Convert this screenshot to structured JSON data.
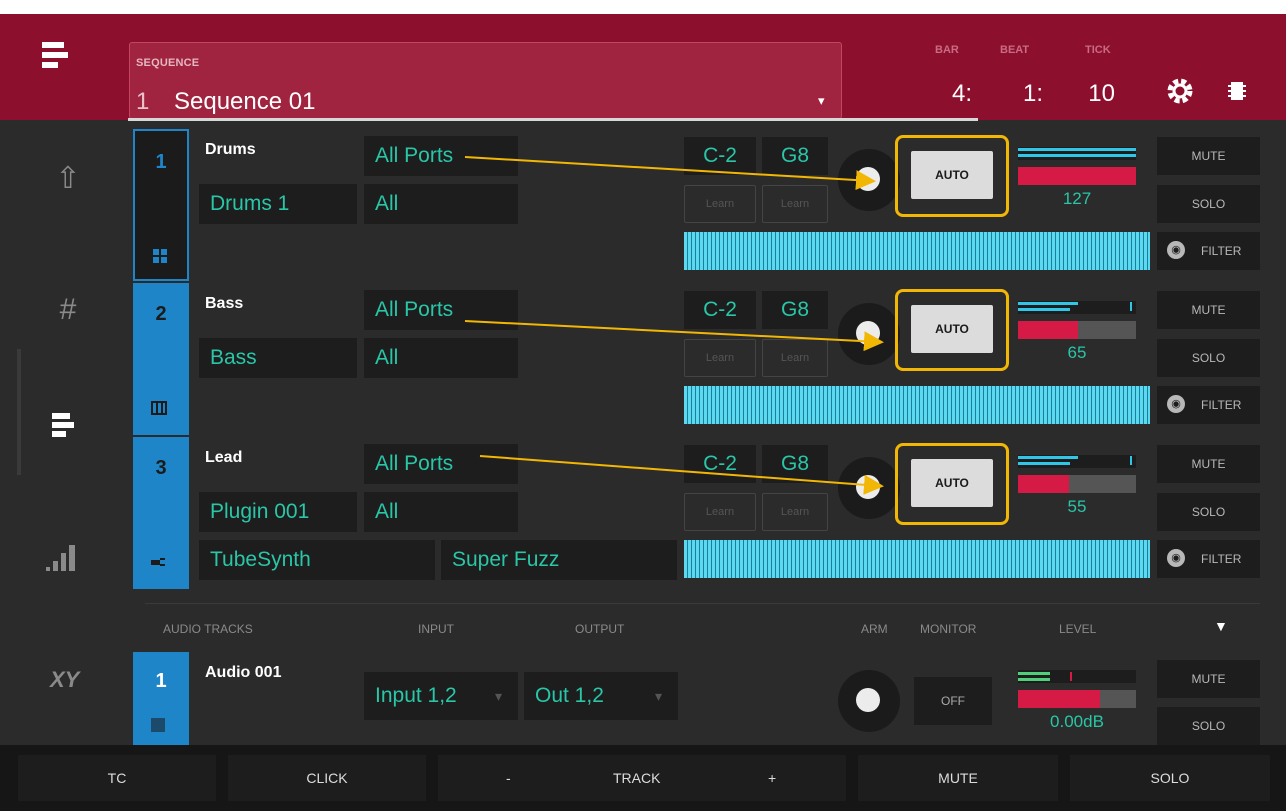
{
  "header": {
    "sequence_label": "SEQUENCE",
    "sequence_number": "1",
    "sequence_name": "Sequence 01",
    "bar_label": "BAR",
    "beat_label": "BEAT",
    "tick_label": "TICK",
    "bar_value": "4:",
    "beat_value": "1:",
    "tick_value": "10"
  },
  "sidebar": {
    "items": [
      {
        "name": "home-icon",
        "glyph": "⇧"
      },
      {
        "name": "grid-icon",
        "glyph": "#"
      },
      {
        "name": "track-view-icon",
        "glyph": "≡"
      },
      {
        "name": "mixer-icon",
        "glyph": "▁▃▅▇"
      },
      {
        "name": "xy-icon",
        "glyph": "XY"
      }
    ]
  },
  "midi_tracks": [
    {
      "number": "1",
      "name": "Drums",
      "port": "All Ports",
      "program": "Drums 1",
      "channel": "All",
      "low": "C-2",
      "high": "G8",
      "learn": "Learn",
      "auto": "AUTO",
      "level": "127",
      "level_fraction": 1.0,
      "mute": "MUTE",
      "solo": "SOLO",
      "filter": "FILTER",
      "icon": "pads-icon",
      "plugin": null,
      "preset": null,
      "color": "#1b1b1c"
    },
    {
      "number": "2",
      "name": "Bass",
      "port": "All Ports",
      "program": "Bass",
      "channel": "All",
      "low": "C-2",
      "high": "G8",
      "learn": "Learn",
      "auto": "AUTO",
      "level": "65",
      "level_fraction": 0.51,
      "mute": "MUTE",
      "solo": "SOLO",
      "filter": "FILTER",
      "icon": "keys-icon",
      "plugin": null,
      "preset": null,
      "color": "#1e86c8"
    },
    {
      "number": "3",
      "name": "Lead",
      "port": "All Ports",
      "program": "Plugin 001",
      "channel": "All",
      "low": "C-2",
      "high": "G8",
      "learn": "Learn",
      "auto": "AUTO",
      "level": "55",
      "level_fraction": 0.43,
      "mute": "MUTE",
      "solo": "SOLO",
      "filter": "FILTER",
      "icon": "plugin-icon",
      "plugin": "TubeSynth",
      "preset": "Super Fuzz",
      "color": "#1e86c8"
    }
  ],
  "audio_section": {
    "headers": {
      "tracks": "AUDIO TRACKS",
      "input": "INPUT",
      "output": "OUTPUT",
      "arm": "ARM",
      "monitor": "MONITOR",
      "level": "LEVEL"
    },
    "track": {
      "number": "1",
      "name": "Audio 001",
      "input": "Input 1,2",
      "output": "Out 1,2",
      "monitor": "OFF",
      "level": "0.00dB",
      "mute": "MUTE",
      "solo": "SOLO"
    }
  },
  "bottom_bar": {
    "tc": "TC",
    "click": "CLICK",
    "minus": "-",
    "track": "TRACK",
    "plus": "+",
    "mute": "MUTE",
    "solo": "SOLO"
  },
  "colors": {
    "accent_header": "#8c0f2e",
    "teal_text": "#29c6a7",
    "highlight": "#f2b705",
    "meter_red": "#d51a45",
    "meter_cyan": "#2fc6e8"
  }
}
